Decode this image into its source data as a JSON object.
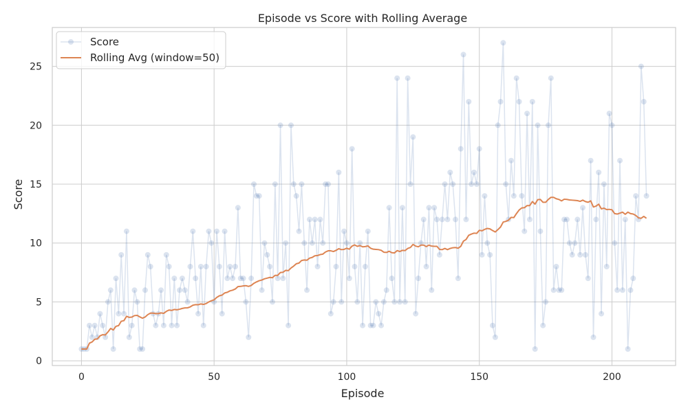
{
  "chart_data": {
    "type": "line",
    "title": "Episode vs Score with Rolling Average",
    "xlabel": "Episode",
    "ylabel": "Score",
    "xlim": [
      -11,
      224
    ],
    "ylim": [
      -0.4,
      28.3
    ],
    "xticks": [
      0,
      50,
      100,
      150,
      200
    ],
    "yticks": [
      0,
      5,
      10,
      15,
      20,
      25
    ],
    "grid": true,
    "legend_position": "upper-left",
    "series": [
      {
        "name": "Score",
        "style": "line-with-markers",
        "color": "#4c72b0",
        "alpha": 0.2,
        "x": [
          0,
          1,
          2,
          3,
          4,
          5,
          6,
          7,
          8,
          9,
          10,
          11,
          12,
          13,
          14,
          15,
          16,
          17,
          18,
          19,
          20,
          21,
          22,
          23,
          24,
          25,
          26,
          27,
          28,
          29,
          30,
          31,
          32,
          33,
          34,
          35,
          36,
          37,
          38,
          39,
          40,
          41,
          42,
          43,
          44,
          45,
          46,
          47,
          48,
          49,
          50,
          51,
          52,
          53,
          54,
          55,
          56,
          57,
          58,
          59,
          60,
          61,
          62,
          63,
          64,
          65,
          66,
          67,
          68,
          69,
          70,
          71,
          72,
          73,
          74,
          75,
          76,
          77,
          78,
          79,
          80,
          81,
          82,
          83,
          84,
          85,
          86,
          87,
          88,
          89,
          90,
          91,
          92,
          93,
          94,
          95,
          96,
          97,
          98,
          99,
          100,
          101,
          102,
          103,
          104,
          105,
          106,
          107,
          108,
          109,
          110,
          111,
          112,
          113,
          114,
          115,
          116,
          117,
          118,
          119,
          120,
          121,
          122,
          123,
          124,
          125,
          126,
          127,
          128,
          129,
          130,
          131,
          132,
          133,
          134,
          135,
          136,
          137,
          138,
          139,
          140,
          141,
          142,
          143,
          144,
          145,
          146,
          147,
          148,
          149,
          150,
          151,
          152,
          153,
          154,
          155,
          156,
          157,
          158,
          159,
          160,
          161,
          162,
          163,
          164,
          165,
          166,
          167,
          168,
          169,
          170,
          171,
          172,
          173,
          174,
          175,
          176,
          177,
          178,
          179,
          180,
          181,
          182,
          183,
          184,
          185,
          186,
          187,
          188,
          189,
          190,
          191,
          192,
          193,
          194,
          195,
          196,
          197,
          198,
          199,
          200,
          201,
          202,
          203,
          204,
          205,
          206,
          207,
          208,
          209,
          210,
          211,
          212,
          213
        ],
        "values": [
          1,
          1,
          1,
          3,
          2,
          3,
          2,
          4,
          3,
          2,
          5,
          6,
          1,
          7,
          4,
          9,
          4,
          11,
          2,
          3,
          6,
          5,
          1,
          1,
          6,
          9,
          8,
          4,
          3,
          4,
          6,
          3,
          9,
          8,
          3,
          7,
          3,
          6,
          7,
          6,
          5,
          8,
          11,
          7,
          4,
          8,
          3,
          8,
          11,
          10,
          5,
          11,
          8,
          4,
          11,
          7,
          8,
          7,
          8,
          13,
          7,
          7,
          5,
          2,
          7,
          15,
          14,
          14,
          6,
          10,
          9,
          8,
          5,
          15,
          7,
          20,
          7,
          10,
          3,
          20,
          15,
          14,
          11,
          15,
          10,
          6,
          12,
          10,
          12,
          8,
          12,
          10,
          15,
          15,
          4,
          5,
          8,
          16,
          5,
          11,
          10,
          7,
          18,
          8,
          5,
          10,
          3,
          8,
          11,
          3,
          3,
          5,
          4,
          3,
          5,
          6,
          13,
          7,
          5,
          24,
          5,
          13,
          5,
          24,
          15,
          19,
          4,
          7,
          10,
          12,
          8,
          13,
          6,
          13,
          12,
          9,
          12,
          15,
          12,
          16,
          15,
          12,
          7,
          18,
          26,
          12,
          22,
          15,
          16,
          15,
          18,
          9,
          14,
          10,
          9,
          3,
          2,
          20,
          22,
          27,
          15,
          12,
          17,
          14,
          24,
          22,
          14,
          11,
          21,
          12,
          22,
          1,
          20,
          11,
          3,
          5,
          20,
          24,
          6,
          8,
          6,
          6,
          12,
          12,
          10,
          9,
          10,
          12,
          9,
          13,
          9,
          7,
          17,
          2,
          12,
          16,
          4,
          15,
          8,
          21,
          20,
          10,
          6,
          17,
          6,
          12,
          1,
          6,
          7,
          14,
          12,
          25,
          22,
          14
        ]
      },
      {
        "name": "Rolling Avg (window=50)",
        "style": "line",
        "color": "#dd8452",
        "x": [
          0,
          1,
          2,
          3,
          4,
          5,
          6,
          7,
          8,
          9,
          10,
          11,
          12,
          13,
          14,
          15,
          16,
          17,
          18,
          19,
          20,
          21,
          22,
          23,
          24,
          25,
          26,
          27,
          28,
          29,
          30,
          31,
          32,
          33,
          34,
          35,
          36,
          37,
          38,
          39,
          40,
          41,
          42,
          43,
          44,
          45,
          46,
          47,
          48,
          49,
          50,
          51,
          52,
          53,
          54,
          55,
          56,
          57,
          58,
          59,
          60,
          61,
          62,
          63,
          64,
          65,
          66,
          67,
          68,
          69,
          70,
          71,
          72,
          73,
          74,
          75,
          76,
          77,
          78,
          79,
          80,
          81,
          82,
          83,
          84,
          85,
          86,
          87,
          88,
          89,
          90,
          91,
          92,
          93,
          94,
          95,
          96,
          97,
          98,
          99,
          100,
          101,
          102,
          103,
          104,
          105,
          106,
          107,
          108,
          109,
          110,
          111,
          112,
          113,
          114,
          115,
          116,
          117,
          118,
          119,
          120,
          121,
          122,
          123,
          124,
          125,
          126,
          127,
          128,
          129,
          130,
          131,
          132,
          133,
          134,
          135,
          136,
          137,
          138,
          139,
          140,
          141,
          142,
          143,
          144,
          145,
          146,
          147,
          148,
          149,
          150,
          151,
          152,
          153,
          154,
          155,
          156,
          157,
          158,
          159,
          160,
          161,
          162,
          163,
          164,
          165,
          166,
          167,
          168,
          169,
          170,
          171,
          172,
          173,
          174,
          175,
          176,
          177,
          178,
          179,
          180,
          181,
          182,
          183,
          184,
          185,
          186,
          187,
          188,
          189,
          190,
          191,
          192,
          193,
          194,
          195,
          196,
          197,
          198,
          199,
          200,
          201,
          202,
          203,
          204,
          205,
          206,
          207,
          208,
          209,
          210,
          211,
          212,
          213
        ],
        "values": [
          1.0,
          1.0,
          1.0,
          1.5,
          1.6,
          1.83,
          1.86,
          2.12,
          2.22,
          2.2,
          2.45,
          2.75,
          2.62,
          2.93,
          2.99,
          3.36,
          3.41,
          3.78,
          3.69,
          3.71,
          3.84,
          3.86,
          3.73,
          3.62,
          3.72,
          3.92,
          4.05,
          4.05,
          4.01,
          4.01,
          4.07,
          4.03,
          4.2,
          4.31,
          4.28,
          4.36,
          4.33,
          4.38,
          4.45,
          4.49,
          4.5,
          4.58,
          4.72,
          4.77,
          4.76,
          4.83,
          4.79,
          4.86,
          5.0,
          5.1,
          5.18,
          5.38,
          5.52,
          5.58,
          5.76,
          5.82,
          5.94,
          6.0,
          6.1,
          6.3,
          6.32,
          6.36,
          6.38,
          6.32,
          6.4,
          6.58,
          6.7,
          6.8,
          6.86,
          6.96,
          7.02,
          7.08,
          7.06,
          7.26,
          7.26,
          7.5,
          7.52,
          7.68,
          7.66,
          7.88,
          8.04,
          8.24,
          8.3,
          8.52,
          8.56,
          8.54,
          8.72,
          8.78,
          8.92,
          8.94,
          9.02,
          9.06,
          9.24,
          9.34,
          9.34,
          9.28,
          9.38,
          9.52,
          9.44,
          9.46,
          9.56,
          9.48,
          9.74,
          9.84,
          9.72,
          9.78,
          9.68,
          9.7,
          9.76,
          9.56,
          9.48,
          9.46,
          9.44,
          9.38,
          9.22,
          9.2,
          9.3,
          9.18,
          9.16,
          9.36,
          9.28,
          9.38,
          9.36,
          9.54,
          9.62,
          9.88,
          9.74,
          9.68,
          9.82,
          9.82,
          9.7,
          9.82,
          9.74,
          9.72,
          9.72,
          9.46,
          9.44,
          9.54,
          9.44,
          9.54,
          9.6,
          9.62,
          9.56,
          9.72,
          10.16,
          10.3,
          10.66,
          10.76,
          10.84,
          10.82,
          11.08,
          11.04,
          11.16,
          11.24,
          11.2,
          11.06,
          10.94,
          11.14,
          11.36,
          11.78,
          11.84,
          11.94,
          12.18,
          12.16,
          12.5,
          12.8,
          12.98,
          13.0,
          13.18,
          13.18,
          13.52,
          13.3,
          13.68,
          13.7,
          13.46,
          13.46,
          13.7,
          13.88,
          13.88,
          13.76,
          13.7,
          13.58,
          13.72,
          13.7,
          13.66,
          13.64,
          13.62,
          13.6,
          13.54,
          13.64,
          13.52,
          13.46,
          13.58,
          13.06,
          13.14,
          13.3,
          12.9,
          12.96,
          12.84,
          12.86,
          12.82,
          12.5,
          12.46,
          12.54,
          12.62,
          12.44,
          12.62,
          12.5,
          12.46,
          12.34,
          12.14,
          12.1,
          12.26,
          12.1
        ]
      }
    ]
  }
}
